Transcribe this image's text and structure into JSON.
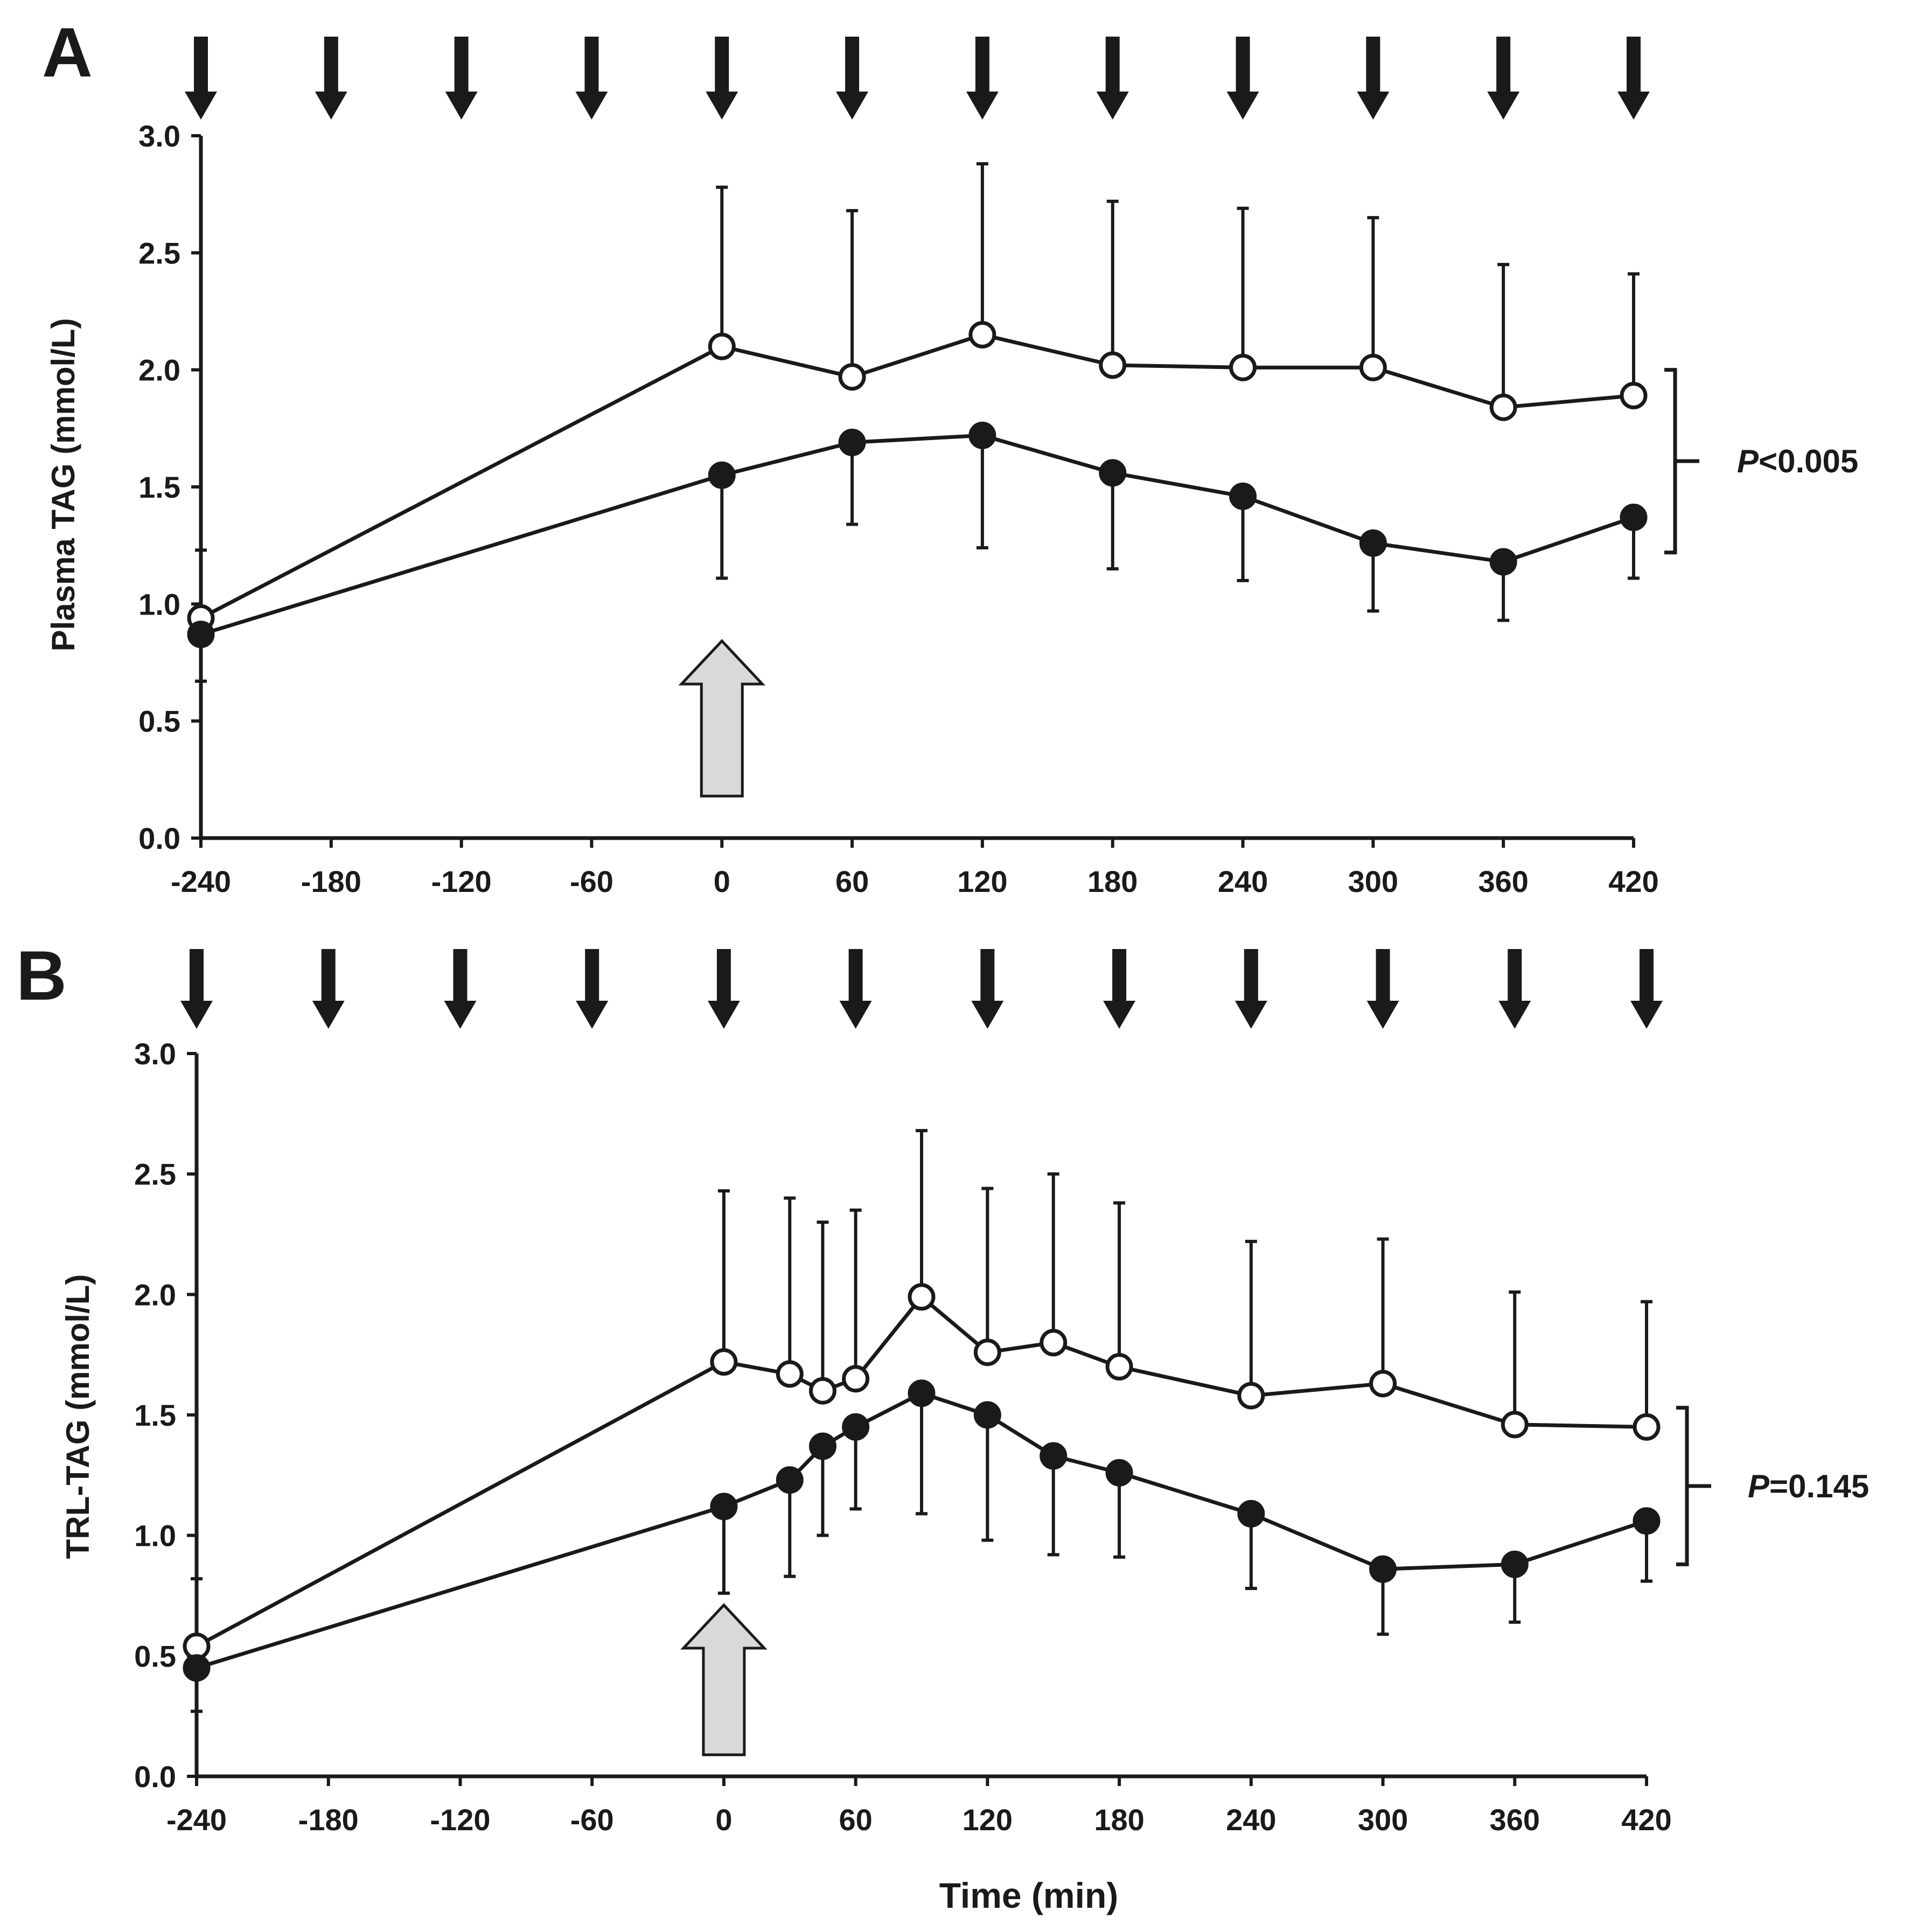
{
  "colors": {
    "ink": "#1a1a1a",
    "open_marker_fill": "#ffffff",
    "meal_arrow_fill": "#d9d9d9",
    "background": "#ffffff"
  },
  "chart_data": [
    {
      "type": "line",
      "panel_label": "A",
      "title": "",
      "xlabel": "",
      "ylabel": "Plasma TAG (mmol/L)",
      "xlim": [
        -240,
        420
      ],
      "ylim": [
        0,
        3.0
      ],
      "x_ticks": [
        -240,
        -180,
        -120,
        -60,
        0,
        60,
        120,
        180,
        240,
        300,
        360,
        420
      ],
      "x_tick_labels": [
        "-240",
        "-180",
        "-120",
        "-60",
        "0",
        "60",
        "120",
        "180",
        "240",
        "300",
        "360",
        "420"
      ],
      "y_ticks": [
        0,
        0.5,
        1.0,
        1.5,
        2.0,
        2.5,
        3.0
      ],
      "y_tick_labels": [
        "0.0",
        "0.5",
        "1.0",
        "1.5",
        "2.0",
        "2.5",
        "3.0"
      ],
      "top_arrow_times": [
        -240,
        -180,
        -120,
        -60,
        0,
        60,
        120,
        180,
        240,
        300,
        360,
        420
      ],
      "meal_arrow_time": 0,
      "series": [
        {
          "name": "open circles",
          "marker": "open",
          "error_direction": "up",
          "x": [
            -240,
            0,
            60,
            120,
            180,
            240,
            300,
            360,
            420
          ],
          "values": [
            0.94,
            2.1,
            1.97,
            2.15,
            2.02,
            2.01,
            2.01,
            1.84,
            1.89
          ],
          "errors": [
            0.29,
            0.68,
            0.71,
            0.73,
            0.7,
            0.68,
            0.64,
            0.61,
            0.52
          ]
        },
        {
          "name": "filled circles",
          "marker": "filled",
          "error_direction": "down",
          "x": [
            -240,
            0,
            60,
            120,
            180,
            240,
            300,
            360,
            420
          ],
          "values": [
            0.87,
            1.55,
            1.69,
            1.72,
            1.56,
            1.46,
            1.26,
            1.18,
            1.37
          ],
          "errors": [
            0.2,
            0.44,
            0.35,
            0.48,
            0.41,
            0.36,
            0.29,
            0.25,
            0.26
          ]
        }
      ],
      "annotation": {
        "prefix": "P",
        "text": "<0.005",
        "bracket_range": [
          1.22,
          2.0
        ]
      }
    },
    {
      "type": "line",
      "panel_label": "B",
      "title": "",
      "xlabel": "Time (min)",
      "ylabel": "TRL-TAG (mmol/L)",
      "xlim": [
        -240,
        420
      ],
      "ylim": [
        0,
        3.0
      ],
      "x_ticks": [
        -240,
        -180,
        -120,
        -60,
        0,
        60,
        120,
        180,
        240,
        300,
        360,
        420
      ],
      "x_tick_labels": [
        "-240",
        "-180",
        "-120",
        "-60",
        "0",
        "60",
        "120",
        "180",
        "240",
        "300",
        "360",
        "420"
      ],
      "y_ticks": [
        0,
        0.5,
        1.0,
        1.5,
        2.0,
        2.5,
        3.0
      ],
      "y_tick_labels": [
        "0.0",
        "0.5",
        "1.0",
        "1.5",
        "2.0",
        "2.5",
        "3.0"
      ],
      "top_arrow_times": [
        -240,
        -180,
        -120,
        -60,
        0,
        60,
        120,
        180,
        240,
        300,
        360,
        420
      ],
      "meal_arrow_time": 0,
      "series": [
        {
          "name": "open circles",
          "marker": "open",
          "error_direction": "up",
          "x": [
            -240,
            0,
            30,
            45,
            60,
            90,
            120,
            150,
            180,
            240,
            300,
            360,
            420
          ],
          "values": [
            0.54,
            1.72,
            1.67,
            1.6,
            1.65,
            1.99,
            1.76,
            1.8,
            1.7,
            1.58,
            1.63,
            1.46,
            1.45
          ],
          "errors": [
            0.28,
            0.71,
            0.73,
            0.7,
            0.7,
            0.69,
            0.68,
            0.7,
            0.68,
            0.64,
            0.6,
            0.55,
            0.52
          ]
        },
        {
          "name": "filled circles",
          "marker": "filled",
          "error_direction": "down",
          "x": [
            -240,
            0,
            30,
            45,
            60,
            90,
            120,
            150,
            180,
            240,
            300,
            360,
            420
          ],
          "values": [
            0.45,
            1.12,
            1.23,
            1.37,
            1.45,
            1.59,
            1.5,
            1.33,
            1.26,
            1.09,
            0.86,
            0.88,
            1.06
          ],
          "errors": [
            0.18,
            0.36,
            0.4,
            0.37,
            0.34,
            0.5,
            0.52,
            0.41,
            0.35,
            0.31,
            0.27,
            0.24,
            0.25
          ]
        }
      ],
      "annotation": {
        "prefix": "P",
        "text": "=0.145",
        "bracket_range": [
          0.88,
          1.53
        ]
      }
    }
  ]
}
